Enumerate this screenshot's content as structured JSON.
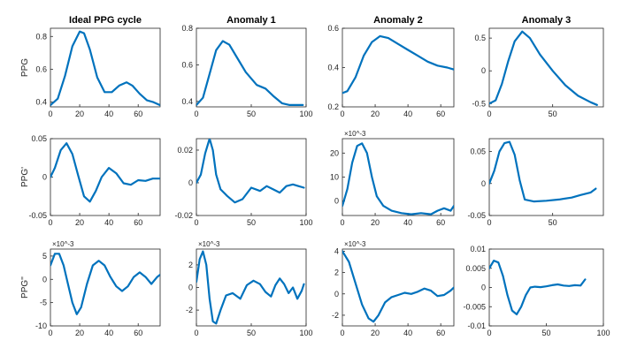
{
  "colors": {
    "line": "#0072BD",
    "axis": "#262626",
    "text": "#222222"
  },
  "chart_data": [
    {
      "type": "line",
      "title": "Ideal PPG cycle",
      "ylabel": "PPG",
      "exponent": "",
      "xlim": [
        0,
        75
      ],
      "ylim": [
        0.37,
        0.85
      ],
      "xticks": [
        0,
        20,
        40,
        60
      ],
      "xtick_labels": [
        "0",
        "20",
        "40",
        "60"
      ],
      "yticks": [
        0.4,
        0.6,
        0.8
      ],
      "ytick_labels": [
        "0.4",
        "0.6",
        "0.8"
      ],
      "x": [
        0,
        5,
        10,
        15,
        20,
        23,
        27,
        32,
        37,
        42,
        47,
        52,
        56,
        61,
        66,
        70,
        75
      ],
      "y": [
        0.38,
        0.42,
        0.56,
        0.74,
        0.83,
        0.82,
        0.72,
        0.55,
        0.46,
        0.46,
        0.5,
        0.52,
        0.5,
        0.45,
        0.41,
        0.4,
        0.38
      ]
    },
    {
      "type": "line",
      "title": "Anomaly 1",
      "ylabel": "",
      "exponent": "",
      "xlim": [
        0,
        100
      ],
      "ylim": [
        0.37,
        0.8
      ],
      "xticks": [
        0,
        50,
        100
      ],
      "xtick_labels": [
        "0",
        "50",
        "100"
      ],
      "yticks": [
        0.4,
        0.6,
        0.8
      ],
      "ytick_labels": [
        "0.4",
        "0.6",
        "0.8"
      ],
      "x": [
        0,
        6,
        12,
        18,
        24,
        30,
        36,
        45,
        55,
        63,
        70,
        78,
        85,
        92,
        97
      ],
      "y": [
        0.38,
        0.42,
        0.55,
        0.68,
        0.73,
        0.71,
        0.65,
        0.56,
        0.49,
        0.47,
        0.43,
        0.39,
        0.38,
        0.38,
        0.38
      ]
    },
    {
      "type": "line",
      "title": "Anomaly 2",
      "ylabel": "",
      "exponent": "",
      "xlim": [
        0,
        68
      ],
      "ylim": [
        0.2,
        0.6
      ],
      "xticks": [
        0,
        20,
        40,
        60
      ],
      "xtick_labels": [
        "0",
        "20",
        "40",
        "60"
      ],
      "yticks": [
        0.2,
        0.4,
        0.6
      ],
      "ytick_labels": [
        "0.2",
        "0.4",
        "0.6"
      ],
      "x": [
        0,
        3,
        8,
        13,
        18,
        23,
        28,
        34,
        40,
        46,
        52,
        58,
        64,
        68
      ],
      "y": [
        0.27,
        0.28,
        0.35,
        0.46,
        0.53,
        0.56,
        0.55,
        0.52,
        0.49,
        0.46,
        0.43,
        0.41,
        0.4,
        0.39
      ]
    },
    {
      "type": "line",
      "title": "Anomaly 3",
      "ylabel": "",
      "exponent": "",
      "xlim": [
        0,
        90
      ],
      "ylim": [
        -0.55,
        0.65
      ],
      "xticks": [
        0,
        50
      ],
      "xtick_labels": [
        "0",
        "50"
      ],
      "yticks": [
        -0.5,
        0,
        0.5
      ],
      "ytick_labels": [
        "-0.5",
        "0",
        "0.5"
      ],
      "x": [
        0,
        5,
        10,
        15,
        20,
        26,
        32,
        40,
        50,
        60,
        70,
        80,
        85
      ],
      "y": [
        -0.5,
        -0.45,
        -0.2,
        0.15,
        0.45,
        0.6,
        0.5,
        0.25,
        0,
        -0.22,
        -0.38,
        -0.48,
        -0.52
      ]
    },
    {
      "type": "line",
      "title": "",
      "ylabel": "PPG'",
      "exponent": "",
      "xlim": [
        0,
        75
      ],
      "ylim": [
        -0.05,
        0.05
      ],
      "xticks": [
        0,
        20,
        40,
        60
      ],
      "xtick_labels": [
        "0",
        "20",
        "40",
        "60"
      ],
      "yticks": [
        -0.05,
        0,
        0.05
      ],
      "ytick_labels": [
        "-0.05",
        "0",
        "0.05"
      ],
      "x": [
        0,
        3,
        7,
        11,
        15,
        19,
        23,
        27,
        31,
        35,
        40,
        45,
        50,
        55,
        60,
        65,
        70,
        75
      ],
      "y": [
        0,
        0.012,
        0.035,
        0.044,
        0.03,
        0.002,
        -0.025,
        -0.032,
        -0.018,
        0,
        0.012,
        0.005,
        -0.008,
        -0.01,
        -0.004,
        -0.005,
        -0.002,
        -0.002
      ]
    },
    {
      "type": "line",
      "title": "",
      "ylabel": "",
      "exponent": "",
      "xlim": [
        0,
        100
      ],
      "ylim": [
        -0.02,
        0.027
      ],
      "xticks": [
        0,
        50,
        100
      ],
      "xtick_labels": [
        "0",
        "50",
        "100"
      ],
      "yticks": [
        -0.02,
        0,
        0.02
      ],
      "ytick_labels": [
        "-0.02",
        "0",
        "0.02"
      ],
      "x": [
        0,
        4,
        8,
        12,
        15,
        18,
        22,
        28,
        35,
        42,
        50,
        58,
        64,
        70,
        76,
        82,
        88,
        93,
        98
      ],
      "y": [
        0,
        0.005,
        0.018,
        0.027,
        0.02,
        0.005,
        -0.004,
        -0.008,
        -0.012,
        -0.01,
        -0.003,
        -0.005,
        -0.002,
        -0.004,
        -0.006,
        -0.002,
        -0.001,
        -0.002,
        -0.003
      ]
    },
    {
      "type": "line",
      "title": "",
      "ylabel": "",
      "exponent": "×10^-3",
      "xlim": [
        0,
        68
      ],
      "ylim": [
        -6,
        26
      ],
      "xticks": [
        0,
        20,
        40,
        60
      ],
      "xtick_labels": [
        "0",
        "20",
        "40",
        "60"
      ],
      "yticks": [
        0,
        10,
        20
      ],
      "ytick_labels": [
        "0",
        "10",
        "20"
      ],
      "x": [
        0,
        3,
        6,
        9,
        12,
        15,
        18,
        21,
        25,
        30,
        36,
        42,
        48,
        54,
        58,
        62,
        66,
        68
      ],
      "y": [
        -2,
        5,
        16,
        23,
        24,
        20,
        10,
        2,
        -2,
        -4,
        -5,
        -5.5,
        -5,
        -5.5,
        -4,
        -3,
        -4,
        -2
      ]
    },
    {
      "type": "line",
      "title": "",
      "ylabel": "",
      "exponent": "",
      "xlim": [
        0,
        90
      ],
      "ylim": [
        -0.05,
        0.07
      ],
      "xticks": [
        0,
        50
      ],
      "xtick_labels": [
        "0",
        "50"
      ],
      "yticks": [
        -0.05,
        0,
        0.05
      ],
      "ytick_labels": [
        "-0.05",
        "0",
        "0.05"
      ],
      "x": [
        0,
        4,
        8,
        12,
        16,
        20,
        24,
        28,
        35,
        45,
        55,
        65,
        72,
        80,
        84
      ],
      "y": [
        0,
        0.02,
        0.05,
        0.063,
        0.065,
        0.045,
        0.005,
        -0.025,
        -0.028,
        -0.027,
        -0.025,
        -0.022,
        -0.018,
        -0.014,
        -0.008
      ]
    },
    {
      "type": "line",
      "title": "",
      "ylabel": "PPG''",
      "exponent": "×10^-3",
      "xlim": [
        0,
        75
      ],
      "ylim": [
        -10,
        6.5
      ],
      "xticks": [
        0,
        20,
        40,
        60
      ],
      "xtick_labels": [
        "0",
        "20",
        "40",
        "60"
      ],
      "yticks": [
        -10,
        -5,
        0,
        5
      ],
      "ytick_labels": [
        "-10",
        "-5",
        "0",
        "5"
      ],
      "x": [
        0,
        3,
        6,
        9,
        12,
        15,
        18,
        21,
        25,
        29,
        33,
        37,
        41,
        45,
        49,
        53,
        57,
        61,
        65,
        69,
        73,
        75
      ],
      "y": [
        3,
        5.5,
        5.5,
        3,
        -1,
        -5,
        -7.5,
        -6,
        -1,
        3,
        4,
        3,
        0.5,
        -1.5,
        -2.5,
        -1.5,
        0.5,
        1.5,
        0.5,
        -1,
        0.5,
        1
      ]
    },
    {
      "type": "line",
      "title": "",
      "ylabel": "",
      "exponent": "×10^-3",
      "xlim": [
        0,
        100
      ],
      "ylim": [
        -3.4,
        3.4
      ],
      "xticks": [
        0,
        50,
        100
      ],
      "xtick_labels": [
        "0",
        "50",
        "100"
      ],
      "yticks": [
        -2,
        0,
        2
      ],
      "ytick_labels": [
        "-2",
        "0",
        "2"
      ],
      "x": [
        0,
        3,
        6,
        9,
        12,
        15,
        18,
        22,
        27,
        33,
        40,
        46,
        52,
        58,
        63,
        68,
        72,
        76,
        80,
        84,
        88,
        92,
        96,
        98
      ],
      "y": [
        0.5,
        2.5,
        3.2,
        2,
        -1,
        -3,
        -3.2,
        -2,
        -0.7,
        -0.5,
        -1,
        0.2,
        0.6,
        0.3,
        -0.4,
        -0.8,
        0.2,
        0.8,
        0.3,
        -0.5,
        0,
        -1,
        -0.3,
        0.3
      ]
    },
    {
      "type": "line",
      "title": "",
      "ylabel": "",
      "exponent": "×10^-3",
      "xlim": [
        0,
        68
      ],
      "ylim": [
        -3,
        4.2
      ],
      "xticks": [
        0,
        20,
        40,
        60
      ],
      "xtick_labels": [
        "0",
        "20",
        "40",
        "60"
      ],
      "yticks": [
        -2,
        0,
        2,
        4
      ],
      "ytick_labels": [
        "-2",
        "0",
        "2",
        "4"
      ],
      "x": [
        0,
        4,
        8,
        12,
        16,
        19,
        22,
        26,
        30,
        34,
        38,
        42,
        46,
        50,
        54,
        58,
        62,
        66,
        68
      ],
      "y": [
        4,
        3,
        1,
        -1,
        -2.3,
        -2.6,
        -2,
        -0.8,
        -0.3,
        -0.1,
        0.1,
        0,
        0.2,
        0.5,
        0.3,
        -0.2,
        -0.1,
        0.3,
        0.6
      ]
    },
    {
      "type": "line",
      "title": "",
      "ylabel": "",
      "exponent": "",
      "xlim": [
        0,
        100
      ],
      "ylim": [
        -0.01,
        0.01
      ],
      "xticks": [
        0,
        50,
        100
      ],
      "xtick_labels": [
        "0",
        "50",
        "100"
      ],
      "yticks": [
        -0.01,
        -0.005,
        0,
        0.005,
        0.01
      ],
      "ytick_labels": [
        "-0.01",
        "-0.005",
        "0",
        "0.005",
        "0.01"
      ],
      "x": [
        0,
        4,
        8,
        12,
        16,
        20,
        24,
        28,
        32,
        36,
        40,
        45,
        50,
        55,
        60,
        65,
        70,
        75,
        80,
        84
      ],
      "y": [
        0.005,
        0.007,
        0.0065,
        0.003,
        -0.002,
        -0.006,
        -0.007,
        -0.005,
        -0.002,
        0,
        0.0002,
        0.0001,
        0.0003,
        0.0006,
        0.0008,
        0.0005,
        0.0004,
        0.0006,
        0.0005,
        0.0021
      ]
    }
  ]
}
